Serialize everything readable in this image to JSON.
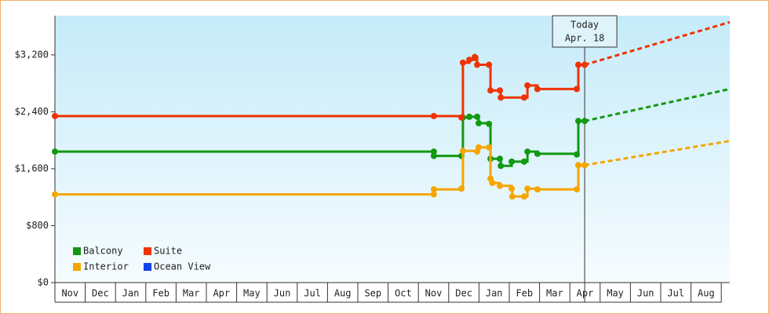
{
  "chart_data": {
    "type": "step-line",
    "xlim": [
      0,
      22.28
    ],
    "xticks": [
      {
        "value": 0,
        "label": "Nov"
      },
      {
        "value": 1,
        "label": "Dec"
      },
      {
        "value": 2,
        "label": "Jan"
      },
      {
        "value": 3,
        "label": "Feb"
      },
      {
        "value": 4,
        "label": "Mar"
      },
      {
        "value": 5,
        "label": "Apr"
      },
      {
        "value": 6,
        "label": "May"
      },
      {
        "value": 7,
        "label": "Jun"
      },
      {
        "value": 8,
        "label": "Jul"
      },
      {
        "value": 9,
        "label": "Aug"
      },
      {
        "value": 10,
        "label": "Sep"
      },
      {
        "value": 11,
        "label": "Oct"
      },
      {
        "value": 12,
        "label": "Nov"
      },
      {
        "value": 13,
        "label": "Dec"
      },
      {
        "value": 14,
        "label": "Jan"
      },
      {
        "value": 15,
        "label": "Feb"
      },
      {
        "value": 16,
        "label": "Mar"
      },
      {
        "value": 17,
        "label": "Apr"
      },
      {
        "value": 18,
        "label": "May"
      },
      {
        "value": 19,
        "label": "Jun"
      },
      {
        "value": 20,
        "label": "Jul"
      },
      {
        "value": 21,
        "label": "Aug"
      }
    ],
    "ylim": [
      0,
      3750
    ],
    "yticks": [
      {
        "value": 0,
        "label": "$0"
      },
      {
        "value": 800,
        "label": "$800"
      },
      {
        "value": 1600,
        "label": "$1,600"
      },
      {
        "value": 2400,
        "label": "$2,400"
      },
      {
        "value": 3200,
        "label": "$3,200"
      }
    ],
    "annotation": {
      "x": 17.49,
      "lines": [
        "Today",
        "Apr. 18"
      ]
    },
    "series": [
      {
        "name": "Balcony",
        "color": "#119911",
        "x": [
          0,
          12.51,
          12.51,
          13.42,
          13.47,
          13.68,
          13.94,
          13.99,
          14.33,
          14.38,
          14.69,
          14.72,
          15.08,
          15.49,
          15.6,
          15.93,
          17.23,
          17.28,
          17.49
        ],
        "values": [
          1840,
          1840,
          1780,
          1780,
          2320,
          2330,
          2330,
          2240,
          2230,
          1740,
          1740,
          1640,
          1700,
          1700,
          1840,
          1810,
          1800,
          2270,
          2270
        ],
        "projection": {
          "x": [
            17.49,
            22.28
          ],
          "values": [
            2270,
            2720
          ]
        }
      },
      {
        "name": "Suite",
        "color": "#ee3300",
        "x": [
          0,
          12.51,
          13.42,
          13.47,
          13.68,
          13.86,
          13.94,
          14.33,
          14.38,
          14.69,
          14.72,
          15.49,
          15.6,
          15.93,
          17.23,
          17.28,
          17.49
        ],
        "values": [
          2340,
          2340,
          2320,
          3090,
          3130,
          3170,
          3060,
          3060,
          2700,
          2700,
          2600,
          2600,
          2770,
          2720,
          2720,
          3060,
          3060
        ],
        "projection": {
          "x": [
            17.49,
            22.28
          ],
          "values": [
            3060,
            3660
          ]
        }
      },
      {
        "name": "Interior",
        "color": "#f5a500",
        "x": [
          0,
          12.51,
          12.51,
          13.42,
          13.47,
          13.94,
          13.99,
          14.33,
          14.38,
          14.44,
          14.69,
          15.08,
          15.1,
          15.49,
          15.6,
          15.93,
          17.23,
          17.28,
          17.49
        ],
        "values": [
          1240,
          1240,
          1310,
          1320,
          1850,
          1840,
          1900,
          1900,
          1460,
          1400,
          1360,
          1320,
          1210,
          1210,
          1320,
          1310,
          1310,
          1650,
          1650
        ],
        "projection": {
          "x": [
            17.49,
            22.28
          ],
          "values": [
            1650,
            1990
          ]
        }
      },
      {
        "name": "Ocean View",
        "color": "#1144ee",
        "x": [],
        "values": []
      }
    ]
  }
}
